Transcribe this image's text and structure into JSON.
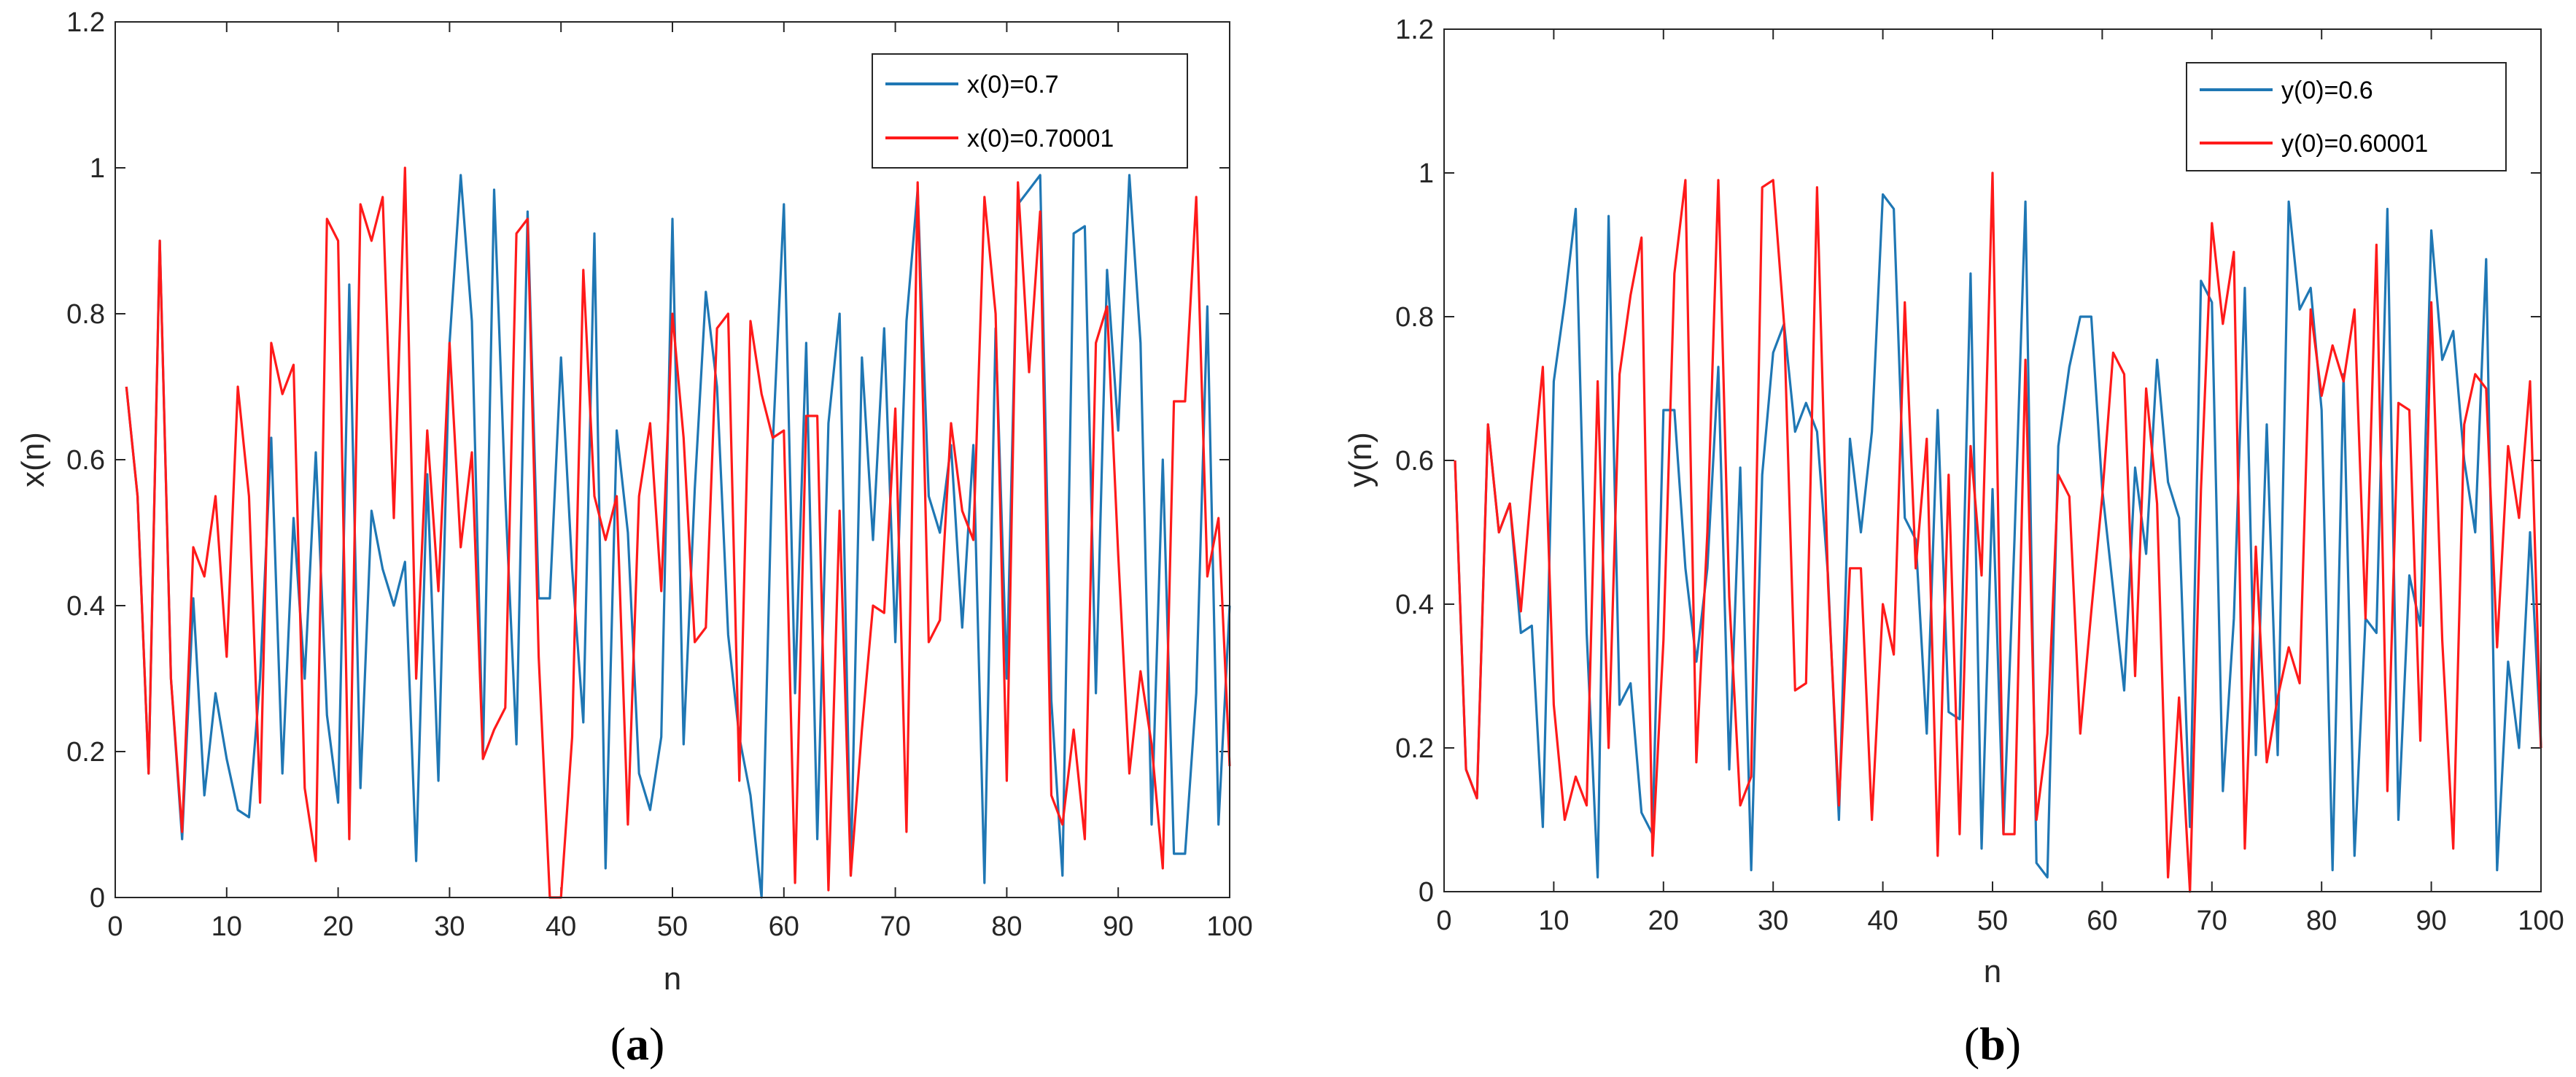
{
  "colors": {
    "series_blue": "#1f77b4",
    "series_red": "#ff1a1a",
    "axis": "#262626"
  },
  "chart_data": [
    {
      "type": "line",
      "panel_label": {
        "open": "(",
        "letter": "a",
        "close": ")"
      },
      "xlabel": "n",
      "ylabel": "x(n)",
      "xlim": [
        0,
        100
      ],
      "ylim": [
        0,
        1.2
      ],
      "xticks": [
        0,
        10,
        20,
        30,
        40,
        50,
        60,
        70,
        80,
        90,
        100
      ],
      "yticks": [
        0,
        0.2,
        0.4,
        0.6,
        0.8,
        1,
        1.2
      ],
      "xtick_labels": [
        "0",
        "10",
        "20",
        "30",
        "40",
        "50",
        "60",
        "70",
        "80",
        "90",
        "100"
      ],
      "ytick_labels": [
        "0",
        "0.2",
        "0.4",
        "0.6",
        "0.8",
        "1",
        "1.2"
      ],
      "legend_position": "top-right",
      "x_start": 1,
      "series": [
        {
          "name": "x(0)=0.7",
          "color": "#1f77b4",
          "values": [
            0.7,
            0.55,
            0.17,
            0.9,
            0.3,
            0.08,
            0.41,
            0.14,
            0.28,
            0.19,
            0.12,
            0.11,
            0.3,
            0.63,
            0.17,
            0.52,
            0.3,
            0.61,
            0.25,
            0.13,
            0.84,
            0.15,
            0.53,
            0.45,
            0.4,
            0.46,
            0.05,
            0.58,
            0.16,
            0.76,
            0.99,
            0.79,
            0.19,
            0.97,
            0.55,
            0.21,
            0.94,
            0.41,
            0.41,
            0.74,
            0.45,
            0.24,
            0.91,
            0.04,
            0.64,
            0.5,
            0.17,
            0.12,
            0.22,
            0.93,
            0.21,
            0.56,
            0.83,
            0.7,
            0.36,
            0.22,
            0.14,
            0.0,
            0.62,
            0.95,
            0.28,
            0.76,
            0.08,
            0.65,
            0.8,
            0.03,
            0.74,
            0.49,
            0.78,
            0.35,
            0.79,
            0.97,
            0.55,
            0.5,
            0.62,
            0.37,
            0.62,
            0.02,
            0.78,
            0.3,
            0.95,
            0.97,
            0.99,
            0.27,
            0.03,
            0.91,
            0.92,
            0.28,
            0.86,
            0.64,
            0.99,
            0.76,
            0.1,
            0.6,
            0.06,
            0.06,
            0.28,
            0.81,
            0.1,
            0.4
          ]
        },
        {
          "name": "x(0)=0.70001",
          "color": "#ff1a1a",
          "values": [
            0.7,
            0.55,
            0.17,
            0.9,
            0.3,
            0.09,
            0.48,
            0.44,
            0.55,
            0.33,
            0.7,
            0.55,
            0.13,
            0.76,
            0.69,
            0.73,
            0.15,
            0.05,
            0.93,
            0.9,
            0.08,
            0.95,
            0.9,
            0.96,
            0.52,
            1.0,
            0.3,
            0.64,
            0.42,
            0.76,
            0.48,
            0.61,
            0.19,
            0.23,
            0.26,
            0.91,
            0.93,
            0.33,
            0.0,
            0.0,
            0.22,
            0.86,
            0.55,
            0.49,
            0.55,
            0.1,
            0.55,
            0.65,
            0.42,
            0.8,
            0.63,
            0.35,
            0.37,
            0.78,
            0.8,
            0.16,
            0.79,
            0.69,
            0.63,
            0.64,
            0.02,
            0.66,
            0.66,
            0.01,
            0.53,
            0.03,
            0.23,
            0.4,
            0.39,
            0.67,
            0.09,
            0.98,
            0.35,
            0.38,
            0.65,
            0.53,
            0.49,
            0.96,
            0.8,
            0.16,
            0.98,
            0.72,
            0.94,
            0.14,
            0.1,
            0.23,
            0.08,
            0.76,
            0.81,
            0.47,
            0.17,
            0.31,
            0.21,
            0.04,
            0.68,
            0.68,
            0.96,
            0.44,
            0.52,
            0.18
          ]
        }
      ]
    },
    {
      "type": "line",
      "panel_label": {
        "open": "(",
        "letter": "b",
        "close": ")"
      },
      "xlabel": "n",
      "ylabel": "y(n)",
      "xlim": [
        0,
        100
      ],
      "ylim": [
        0,
        1.2
      ],
      "xticks": [
        0,
        10,
        20,
        30,
        40,
        50,
        60,
        70,
        80,
        90,
        100
      ],
      "yticks": [
        0,
        0.2,
        0.4,
        0.6,
        0.8,
        1,
        1.2
      ],
      "xtick_labels": [
        "0",
        "10",
        "20",
        "30",
        "40",
        "50",
        "60",
        "70",
        "80",
        "90",
        "100"
      ],
      "ytick_labels": [
        "0",
        "0.2",
        "0.4",
        "0.6",
        "0.8",
        "1",
        "1.2"
      ],
      "legend_position": "top-right",
      "x_start": 1,
      "series": [
        {
          "name": "y(0)=0.6",
          "color": "#1f77b4",
          "values": [
            0.6,
            0.17,
            0.13,
            0.65,
            0.5,
            0.54,
            0.36,
            0.37,
            0.09,
            0.71,
            0.82,
            0.95,
            0.36,
            0.02,
            0.94,
            0.26,
            0.29,
            0.11,
            0.08,
            0.67,
            0.67,
            0.45,
            0.32,
            0.45,
            0.73,
            0.17,
            0.59,
            0.03,
            0.58,
            0.75,
            0.79,
            0.64,
            0.68,
            0.64,
            0.44,
            0.1,
            0.63,
            0.5,
            0.64,
            0.97,
            0.95,
            0.52,
            0.49,
            0.22,
            0.67,
            0.25,
            0.24,
            0.86,
            0.06,
            0.56,
            0.08,
            0.49,
            0.96,
            0.04,
            0.02,
            0.62,
            0.73,
            0.8,
            0.8,
            0.56,
            0.42,
            0.28,
            0.59,
            0.47,
            0.74,
            0.57,
            0.52,
            0.09,
            0.85,
            0.82,
            0.14,
            0.38,
            0.84,
            0.19,
            0.65,
            0.19,
            0.96,
            0.81,
            0.84,
            0.67,
            0.03,
            0.72,
            0.05,
            0.38,
            0.36,
            0.95,
            0.1,
            0.44,
            0.37,
            0.92,
            0.74,
            0.78,
            0.6,
            0.5,
            0.88,
            0.03,
            0.32,
            0.2,
            0.5,
            0.2
          ]
        },
        {
          "name": "y(0)=0.60001",
          "color": "#ff1a1a",
          "values": [
            0.6,
            0.17,
            0.13,
            0.65,
            0.5,
            0.54,
            0.39,
            0.57,
            0.73,
            0.26,
            0.1,
            0.16,
            0.12,
            0.71,
            0.2,
            0.72,
            0.83,
            0.91,
            0.05,
            0.35,
            0.86,
            0.99,
            0.18,
            0.5,
            0.99,
            0.41,
            0.12,
            0.16,
            0.98,
            0.99,
            0.79,
            0.28,
            0.29,
            0.98,
            0.43,
            0.12,
            0.45,
            0.45,
            0.1,
            0.4,
            0.33,
            0.82,
            0.45,
            0.63,
            0.05,
            0.58,
            0.08,
            0.62,
            0.44,
            1.0,
            0.08,
            0.08,
            0.74,
            0.1,
            0.22,
            0.58,
            0.55,
            0.22,
            0.39,
            0.55,
            0.75,
            0.72,
            0.3,
            0.7,
            0.54,
            0.02,
            0.27,
            0.0,
            0.56,
            0.93,
            0.79,
            0.89,
            0.06,
            0.48,
            0.18,
            0.27,
            0.34,
            0.29,
            0.81,
            0.69,
            0.76,
            0.71,
            0.81,
            0.38,
            0.9,
            0.14,
            0.68,
            0.67,
            0.21,
            0.82,
            0.35,
            0.06,
            0.65,
            0.72,
            0.7,
            0.34,
            0.62,
            0.52,
            0.71,
            0.2
          ]
        }
      ]
    }
  ]
}
